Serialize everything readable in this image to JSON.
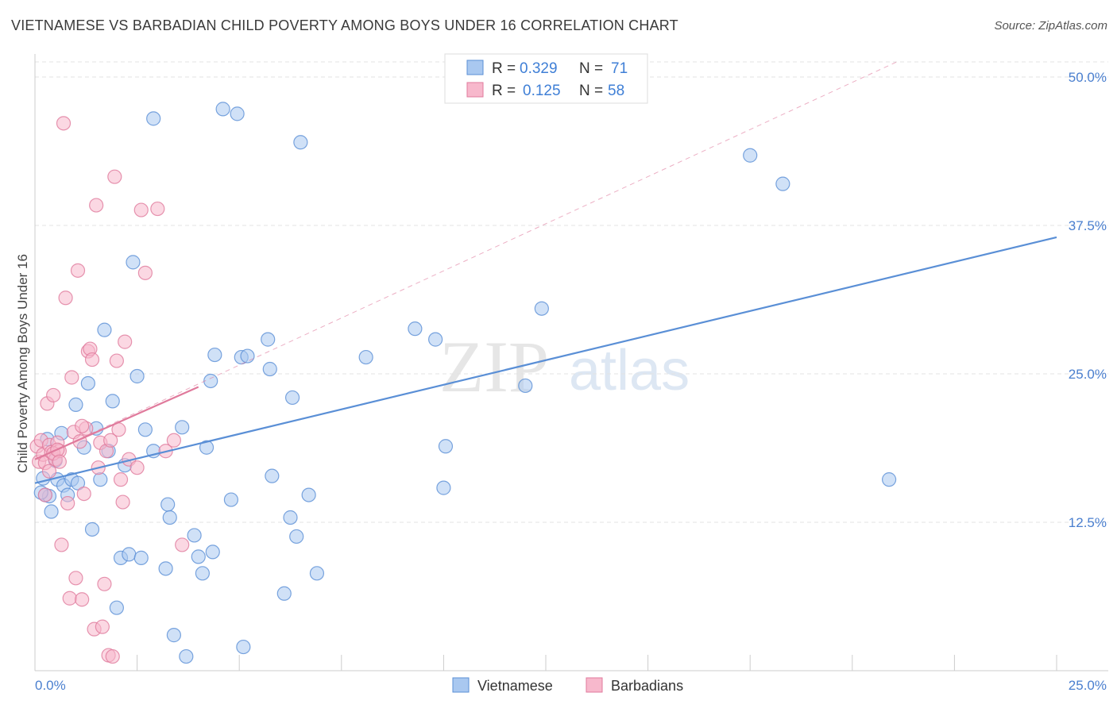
{
  "title": "VIETNAMESE VS BARBADIAN CHILD POVERTY AMONG BOYS UNDER 16 CORRELATION CHART",
  "source": "Source: ZipAtlas.com",
  "watermark": {
    "zip": "ZIP",
    "atlas": "atlas"
  },
  "legend": {
    "rows": [
      {
        "r_label": "R = ",
        "r_value": "0.329",
        "n_label": "N = ",
        "n_value": "71",
        "color": "#a9c8f0",
        "stroke": "#5a8fd6"
      },
      {
        "r_label": "R = ",
        "r_value": "0.125",
        "n_label": "N = ",
        "n_value": "58",
        "color": "#f7b8cc",
        "stroke": "#e07a9c"
      }
    ]
  },
  "bottom_legend": [
    {
      "label": "Vietnamese",
      "color": "#a9c8f0",
      "stroke": "#5a8fd6"
    },
    {
      "label": "Barbadians",
      "color": "#f7b8cc",
      "stroke": "#e07a9c"
    }
  ],
  "chart_data": {
    "type": "scatter",
    "title": "VIETNAMESE VS BARBADIAN CHILD POVERTY AMONG BOYS UNDER 16 CORRELATION CHART",
    "xlabel": "",
    "ylabel": "Child Poverty Among Boys Under 16",
    "xlim": [
      0,
      25
    ],
    "ylim": [
      0,
      50
    ],
    "x_tick_labels": [
      "0.0%",
      "25.0%"
    ],
    "y_ticks": [
      12.5,
      25.0,
      37.5,
      50.0
    ],
    "y_tick_labels": [
      "12.5%",
      "25.0%",
      "37.5%",
      "50.0%"
    ],
    "grid": true,
    "series": [
      {
        "name": "Vietnamese",
        "color": "#5a8fd6",
        "fill": "#a9c8f0",
        "trend": {
          "x": [
            0,
            25
          ],
          "y": [
            15.8,
            36.5
          ]
        },
        "points": [
          [
            0.2,
            16.2
          ],
          [
            0.25,
            14.8
          ],
          [
            0.3,
            19.5
          ],
          [
            0.35,
            14.7
          ],
          [
            0.4,
            13.4
          ],
          [
            0.5,
            17.7
          ],
          [
            0.55,
            16.1
          ],
          [
            0.65,
            20.0
          ],
          [
            0.7,
            15.6
          ],
          [
            0.8,
            14.8
          ],
          [
            0.9,
            16.1
          ],
          [
            1.0,
            22.4
          ],
          [
            1.05,
            15.8
          ],
          [
            1.2,
            18.8
          ],
          [
            1.3,
            24.2
          ],
          [
            1.4,
            11.9
          ],
          [
            1.5,
            20.4
          ],
          [
            1.6,
            16.1
          ],
          [
            1.7,
            28.7
          ],
          [
            1.8,
            18.5
          ],
          [
            1.9,
            22.7
          ],
          [
            2.0,
            5.3
          ],
          [
            2.1,
            9.5
          ],
          [
            2.2,
            17.3
          ],
          [
            2.3,
            9.8
          ],
          [
            2.4,
            34.4
          ],
          [
            2.5,
            24.8
          ],
          [
            2.6,
            9.5
          ],
          [
            2.7,
            20.3
          ],
          [
            2.9,
            18.5
          ],
          [
            2.9,
            46.5
          ],
          [
            3.2,
            8.6
          ],
          [
            3.25,
            14.0
          ],
          [
            3.3,
            12.9
          ],
          [
            3.4,
            3.0
          ],
          [
            3.6,
            20.5
          ],
          [
            3.7,
            1.2
          ],
          [
            3.9,
            11.4
          ],
          [
            4.0,
            9.6
          ],
          [
            4.1,
            8.2
          ],
          [
            4.2,
            18.8
          ],
          [
            4.3,
            24.4
          ],
          [
            4.35,
            10.0
          ],
          [
            4.4,
            26.6
          ],
          [
            4.6,
            47.3
          ],
          [
            4.8,
            14.4
          ],
          [
            4.95,
            46.9
          ],
          [
            5.05,
            26.4
          ],
          [
            5.1,
            2.0
          ],
          [
            5.2,
            26.5
          ],
          [
            5.7,
            27.9
          ],
          [
            5.75,
            25.4
          ],
          [
            5.8,
            16.4
          ],
          [
            6.1,
            6.5
          ],
          [
            6.25,
            12.9
          ],
          [
            6.3,
            23.0
          ],
          [
            6.4,
            11.3
          ],
          [
            6.5,
            44.5
          ],
          [
            6.7,
            14.8
          ],
          [
            6.9,
            8.2
          ],
          [
            8.1,
            26.4
          ],
          [
            9.3,
            28.8
          ],
          [
            9.8,
            27.9
          ],
          [
            10.0,
            15.4
          ],
          [
            10.05,
            18.9
          ],
          [
            12.0,
            24.0
          ],
          [
            12.4,
            30.5
          ],
          [
            17.5,
            43.4
          ],
          [
            18.3,
            41.0
          ],
          [
            20.9,
            16.1
          ],
          [
            0.15,
            15.0
          ]
        ]
      },
      {
        "name": "Barbadians",
        "color": "#e07a9c",
        "fill": "#f7b8cc",
        "trend": {
          "x": [
            0,
            4
          ],
          "y": [
            17.8,
            23.9
          ],
          "extended": {
            "x": [
              0,
              25
            ],
            "y": [
              17.8,
              55.9
            ]
          }
        },
        "points": [
          [
            0.05,
            18.9
          ],
          [
            0.1,
            17.6
          ],
          [
            0.15,
            19.4
          ],
          [
            0.2,
            18.2
          ],
          [
            0.25,
            17.5
          ],
          [
            0.3,
            22.5
          ],
          [
            0.35,
            19.0
          ],
          [
            0.4,
            18.4
          ],
          [
            0.45,
            23.2
          ],
          [
            0.5,
            17.8
          ],
          [
            0.55,
            19.2
          ],
          [
            0.6,
            18.5
          ],
          [
            0.65,
            10.6
          ],
          [
            0.7,
            46.1
          ],
          [
            0.75,
            31.4
          ],
          [
            0.8,
            14.1
          ],
          [
            0.85,
            6.1
          ],
          [
            0.9,
            24.7
          ],
          [
            0.95,
            20.1
          ],
          [
            1.0,
            7.8
          ],
          [
            1.05,
            33.7
          ],
          [
            1.1,
            19.3
          ],
          [
            1.15,
            6.0
          ],
          [
            1.2,
            14.9
          ],
          [
            1.25,
            20.4
          ],
          [
            1.3,
            26.9
          ],
          [
            1.35,
            27.1
          ],
          [
            1.4,
            26.2
          ],
          [
            1.45,
            3.5
          ],
          [
            1.5,
            39.2
          ],
          [
            1.55,
            17.1
          ],
          [
            1.6,
            19.2
          ],
          [
            1.65,
            3.7
          ],
          [
            1.7,
            7.3
          ],
          [
            1.75,
            18.5
          ],
          [
            1.8,
            1.3
          ],
          [
            1.85,
            19.4
          ],
          [
            1.9,
            1.2
          ],
          [
            1.95,
            41.6
          ],
          [
            2.0,
            26.1
          ],
          [
            2.05,
            20.3
          ],
          [
            2.1,
            16.1
          ],
          [
            2.15,
            14.2
          ],
          [
            2.2,
            27.7
          ],
          [
            2.3,
            17.8
          ],
          [
            2.5,
            17.1
          ],
          [
            2.6,
            38.8
          ],
          [
            2.7,
            33.5
          ],
          [
            3.0,
            38.9
          ],
          [
            3.2,
            18.5
          ],
          [
            3.4,
            19.4
          ],
          [
            3.6,
            10.6
          ],
          [
            0.25,
            14.8
          ],
          [
            0.35,
            16.8
          ],
          [
            0.45,
            18.3
          ],
          [
            0.55,
            18.6
          ],
          [
            1.15,
            20.6
          ],
          [
            0.6,
            17.6
          ]
        ]
      }
    ]
  }
}
